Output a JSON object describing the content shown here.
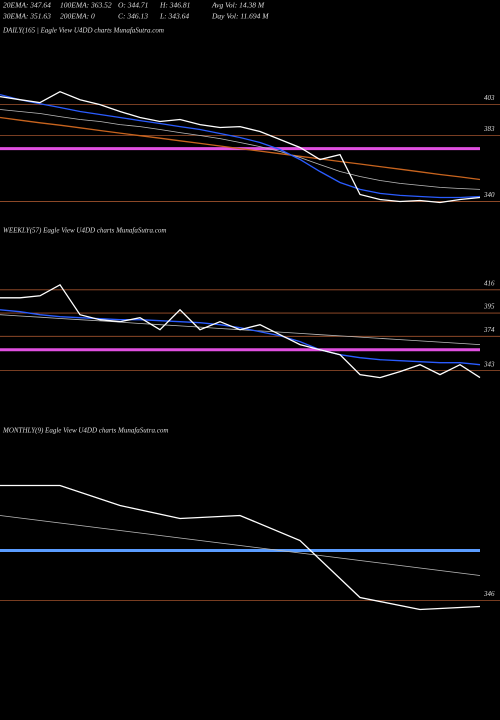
{
  "header": {
    "lines": [
      [
        "20EMA: 347.64",
        "100EMA: 363.52",
        "O: 344.71",
        "H: 346.81",
        "Avg Vol: 14.38  M"
      ],
      [
        "30EMA: 351.63",
        "200EMA: 0",
        "C: 346.13",
        "L: 343.64",
        "Day Vol: 11.694  M"
      ]
    ]
  },
  "chart_data": [
    {
      "type": "line",
      "title": "DAILY(165 | Eagle  View  U4DD charts MunafaSutra.com",
      "ylim": [
        328,
        445
      ],
      "yticks": [
        403,
        383,
        340
      ],
      "hlines": [
        {
          "value": 374.4,
          "color": "#e050e0"
        }
      ],
      "series": [
        {
          "color": "#c8641e",
          "values": [
            394.6,
            392.9,
            391.2,
            389.6,
            387.9,
            386.2,
            384.5,
            382.8,
            381.2,
            379.5,
            377.8,
            376.1,
            374.4,
            372.8,
            371.1,
            369.4,
            367.7,
            366,
            364.4,
            362.7,
            361,
            359.3,
            357.6,
            356,
            354.3
          ]
        },
        {
          "color": "#bbbbbb",
          "values": [
            399.8,
            398.5,
            397.2,
            395.2,
            393.3,
            392,
            390,
            388.7,
            386.8,
            384.8,
            382.9,
            380.9,
            378.4,
            375.7,
            372.5,
            368.6,
            364,
            359.5,
            356.3,
            353.7,
            351.8,
            350.5,
            349.2,
            348.5,
            347.9
          ]
        },
        {
          "color": "#2a5cff",
          "values": [
            409.5,
            406.2,
            403.6,
            401.1,
            398.5,
            396.6,
            394.6,
            392.6,
            390.7,
            388.7,
            386.8,
            384.2,
            381.6,
            378.4,
            373.8,
            367.3,
            359.5,
            352.4,
            347.9,
            345.3,
            344,
            343.3,
            342.6,
            342.6,
            343.3
          ]
        },
        {
          "color": "#ffffff",
          "values": [
            408.2,
            406.2,
            404.3,
            411.4,
            406.2,
            403,
            398.5,
            394.6,
            392,
            393.3,
            390,
            388.1,
            388.7,
            385.5,
            380.3,
            375.1,
            367.3,
            370.5,
            344.6,
            341.3,
            340,
            340.7,
            339.4,
            341.3,
            342.6
          ]
        }
      ]
    },
    {
      "type": "line",
      "title": "WEEKLY(57) Eagle  View  U4DD charts MunafaSutra.com",
      "ylim": [
        321,
        461
      ],
      "yticks": [
        416,
        395,
        374,
        343
      ],
      "hlines": [
        {
          "value": 361.9,
          "color": "#e050e0"
        }
      ],
      "series": [
        {
          "color": "#bbbbbb",
          "values": [
            393.5,
            392.4,
            391.3,
            390.1,
            389,
            387.9,
            386.8,
            385.6,
            384.5,
            383.4,
            382.3,
            381.1,
            380,
            378.9,
            377.8,
            376.6,
            375.5,
            374.4,
            373.3,
            372.1,
            371,
            369.9,
            368.8,
            367.6,
            366.5
          ]
        },
        {
          "color": "#2a5cff",
          "values": [
            398,
            396.2,
            393.5,
            391.7,
            390.8,
            389.9,
            389,
            389,
            388.1,
            387.2,
            386.3,
            384.5,
            381.8,
            378.2,
            374.6,
            369.2,
            361.9,
            357.4,
            354.7,
            352.9,
            352,
            351.1,
            350.2,
            350.2,
            348.4
          ]
        },
        {
          "color": "#ffffff",
          "values": [
            408.8,
            408.8,
            410.6,
            420.5,
            393.5,
            389,
            387.2,
            390.8,
            380,
            398,
            380,
            387.2,
            380,
            384.5,
            375.5,
            366.5,
            361.9,
            357.4,
            339.4,
            336.7,
            342.1,
            348.4,
            339.4,
            348.4,
            336.7
          ]
        }
      ]
    },
    {
      "type": "line",
      "title": "MONTHLY(9) Eagle  View  U4DD charts MunafaSutra.com",
      "ylim": [
        333,
        453
      ],
      "yticks": [
        346
      ],
      "hlines": [
        {
          "value": 379.3,
          "color": "#5a9cff"
        }
      ],
      "series": [
        {
          "color": "#bbbbbb",
          "values": [
            402.7,
            397.7,
            392.7,
            387.7,
            382.7,
            377.7,
            372.7,
            367.7,
            362.7
          ]
        },
        {
          "color": "#ffffff",
          "values": [
            422.7,
            422.7,
            409.3,
            400.7,
            402.7,
            386,
            348,
            340,
            342
          ]
        }
      ]
    }
  ]
}
